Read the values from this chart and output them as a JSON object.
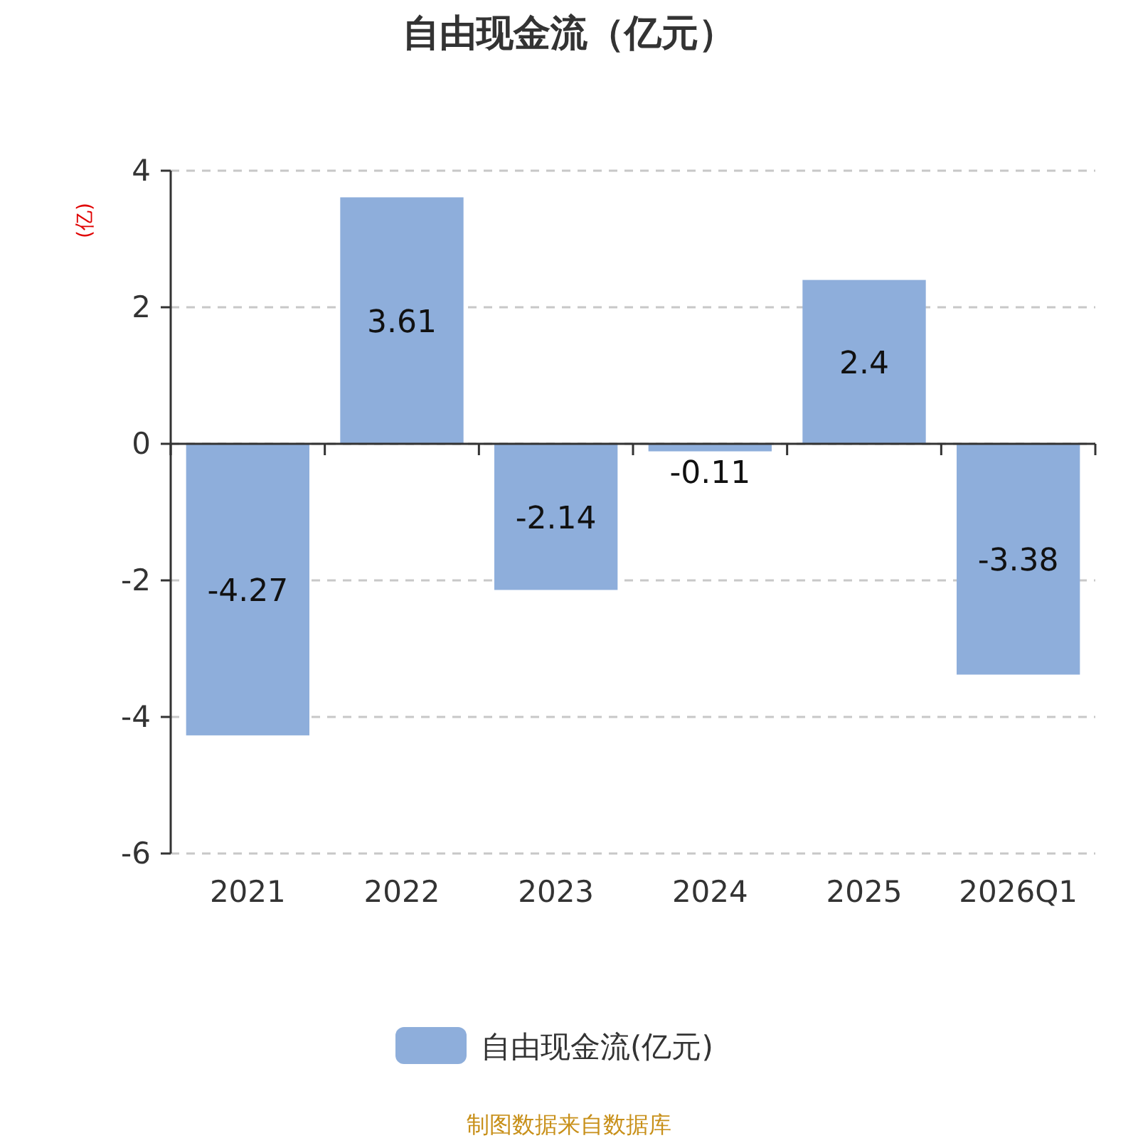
{
  "chart_data": {
    "type": "bar",
    "title": "自由现金流（亿元）",
    "ylabel": "(亿)",
    "categories": [
      "2021",
      "2022",
      "2023",
      "2024",
      "2025",
      "2026Q1"
    ],
    "series": [
      {
        "name": "自由现金流(亿元)",
        "color": "#8eaedb",
        "values": [
          -4.27,
          3.61,
          -2.14,
          -0.11,
          2.4,
          -3.38
        ]
      }
    ],
    "ylim": [
      -6,
      4
    ],
    "yticks": [
      -6,
      -4,
      -2,
      0,
      2,
      4
    ],
    "grid": "y",
    "legend": "bottom",
    "data_labels": true,
    "annotations": [
      "制图数据来自数据库"
    ]
  }
}
